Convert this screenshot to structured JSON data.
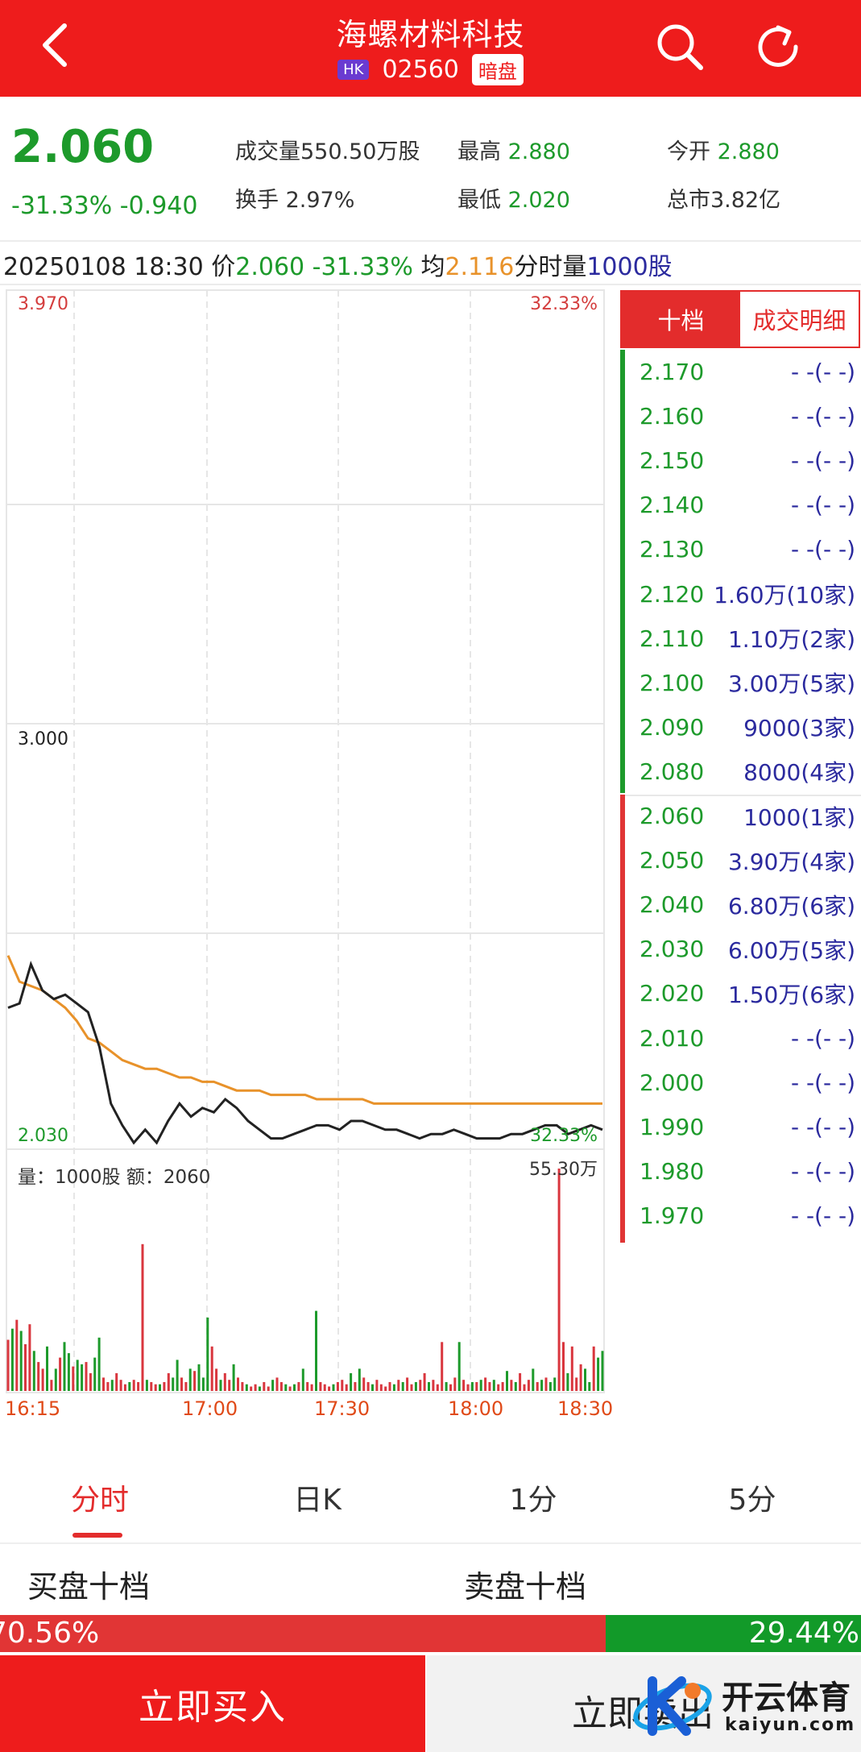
{
  "header": {
    "title": "海螺材料科技",
    "market_badge": "HK",
    "code": "02560",
    "session_badge": "暗盘",
    "icons": [
      "back-icon",
      "search-icon",
      "refresh-icon"
    ]
  },
  "quote": {
    "price": "2.060",
    "change": "-31.33% -0.940",
    "volume_label": "成交量",
    "volume": "550.50万股",
    "turnover_label": "换手",
    "turnover": "2.97%",
    "high_label": "最高",
    "high": "2.880",
    "low_label": "最低",
    "low": "2.020",
    "open_label": "今开",
    "open": "2.880",
    "mcap_label": "总市",
    "mcap": "3.82亿"
  },
  "info_row": {
    "datetime": "20250108 18:30",
    "price_label": "价",
    "price": "2.060",
    "change": "-31.33%",
    "avg_label": "均",
    "avg": "2.116",
    "vol_label": "分时量",
    "vol": "1000股"
  },
  "chart": {
    "top_price": "3.970",
    "top_pct": "32.33%",
    "mid_price": "3.000",
    "bottom_price": "2.030",
    "bottom_pct": "32.33%",
    "volume_caption": "量：1000股 额：2060",
    "volume_max": "55.30万",
    "time_labels": [
      "16:15",
      "17:00",
      "17:30",
      "18:00",
      "18:30"
    ]
  },
  "chart_data": {
    "type": "line",
    "y_range": [
      2.03,
      3.97
    ],
    "x_range": [
      "16:15",
      "18:30"
    ],
    "series": [
      {
        "values": [
          2.34,
          2.35,
          2.44,
          2.38,
          2.36,
          2.37,
          2.35,
          2.33,
          2.25,
          2.12,
          2.07,
          2.03,
          2.06,
          2.03,
          2.08,
          2.12,
          2.09,
          2.11,
          2.1,
          2.13,
          2.11,
          2.08,
          2.06,
          2.04,
          2.04,
          2.05,
          2.06,
          2.07,
          2.07,
          2.06,
          2.08,
          2.08,
          2.07,
          2.06,
          2.06,
          2.05,
          2.04,
          2.05,
          2.05,
          2.06,
          2.05,
          2.04,
          2.04,
          2.04,
          2.05,
          2.05,
          2.06,
          2.07,
          2.07,
          2.05,
          2.06,
          2.07,
          2.06
        ]
      },
      {
        "values": [
          2.46,
          2.4,
          2.39,
          2.38,
          2.36,
          2.34,
          2.31,
          2.27,
          2.26,
          2.24,
          2.22,
          2.21,
          2.2,
          2.2,
          2.19,
          2.18,
          2.18,
          2.17,
          2.17,
          2.16,
          2.15,
          2.15,
          2.15,
          2.14,
          2.14,
          2.14,
          2.14,
          2.13,
          2.13,
          2.13,
          2.13,
          2.13,
          2.12,
          2.12,
          2.12,
          2.12,
          2.12,
          2.12,
          2.12,
          2.12,
          2.12,
          2.12,
          2.12,
          2.12,
          2.12,
          2.12,
          2.12,
          2.12,
          2.12,
          2.12,
          2.12,
          2.12,
          2.12
        ]
      }
    ],
    "volume_bars": [
      0.23,
      0.28,
      0.32,
      0.27,
      0.21,
      0.3,
      0.18,
      0.13,
      0.1,
      0.2,
      0.05,
      0.1,
      0.15,
      0.22,
      0.17,
      0.11,
      0.14,
      0.12,
      0.13,
      0.08,
      0.15,
      0.24,
      0.06,
      0.04,
      0.05,
      0.08,
      0.05,
      0.03,
      0.04,
      0.05,
      0.04,
      0.66,
      0.05,
      0.04,
      0.03,
      0.03,
      0.04,
      0.08,
      0.06,
      0.14,
      0.06,
      0.04,
      0.1,
      0.09,
      0.12,
      0.06,
      0.33,
      0.2,
      0.1,
      0.05,
      0.08,
      0.05,
      0.12,
      0.06,
      0.04,
      0.03,
      0.02,
      0.03,
      0.02,
      0.04,
      0.02,
      0.05,
      0.06,
      0.04,
      0.03,
      0.02,
      0.03,
      0.04,
      0.1,
      0.04,
      0.03,
      0.36,
      0.04,
      0.03,
      0.02,
      0.03,
      0.04,
      0.05,
      0.03,
      0.08,
      0.04,
      0.1,
      0.06,
      0.04,
      0.03,
      0.05,
      0.03,
      0.02,
      0.04,
      0.03,
      0.05,
      0.04,
      0.06,
      0.03,
      0.04,
      0.05,
      0.08,
      0.04,
      0.05,
      0.03,
      0.22,
      0.04,
      0.03,
      0.06,
      0.22,
      0.05,
      0.03,
      0.04,
      0.04,
      0.05,
      0.06,
      0.04,
      0.05,
      0.03,
      0.04,
      0.09,
      0.05,
      0.04,
      0.08,
      0.03,
      0.05,
      0.1,
      0.04,
      0.05,
      0.06,
      0.04,
      0.06,
      1.0,
      0.22,
      0.08,
      0.2,
      0.06,
      0.12,
      0.1,
      0.04,
      0.2,
      0.15,
      0.18
    ],
    "volume_colors": [
      "r",
      "g",
      "r",
      "g",
      "r",
      "r",
      "g",
      "r",
      "r",
      "g",
      "r",
      "g",
      "r",
      "g",
      "g",
      "r",
      "g",
      "g",
      "r",
      "r",
      "g",
      "g",
      "r",
      "r",
      "g",
      "r",
      "r",
      "r",
      "g",
      "r",
      "r",
      "r",
      "g",
      "r",
      "r",
      "g",
      "r",
      "r",
      "g",
      "g",
      "r",
      "r",
      "g",
      "r",
      "g",
      "g",
      "g",
      "r",
      "r",
      "g",
      "r",
      "r",
      "g",
      "r",
      "r",
      "g",
      "r",
      "r",
      "g",
      "r",
      "r",
      "g",
      "r",
      "r",
      "g",
      "r",
      "g",
      "r",
      "g",
      "r",
      "r",
      "g",
      "r",
      "r",
      "r",
      "g",
      "r",
      "r",
      "r",
      "g",
      "r",
      "g",
      "r",
      "r",
      "g",
      "r",
      "r",
      "r",
      "r",
      "g",
      "r",
      "g",
      "r",
      "r",
      "g",
      "r",
      "r",
      "g",
      "r",
      "r",
      "r",
      "g",
      "r",
      "r",
      "g",
      "r",
      "r",
      "g",
      "r",
      "g",
      "r",
      "r",
      "g",
      "r",
      "r",
      "g",
      "r",
      "g",
      "r",
      "r",
      "r",
      "g",
      "r",
      "g",
      "r",
      "g",
      "g",
      "r",
      "r",
      "g",
      "r",
      "r",
      "r",
      "g",
      "g",
      "r",
      "g",
      "g"
    ]
  },
  "orderbook": {
    "tab_ten": "十档",
    "tab_detail": "成交明细",
    "asks": [
      {
        "price": "2.170",
        "vol": "- -(- -)"
      },
      {
        "price": "2.160",
        "vol": "- -(- -)"
      },
      {
        "price": "2.150",
        "vol": "- -(- -)"
      },
      {
        "price": "2.140",
        "vol": "- -(- -)"
      },
      {
        "price": "2.130",
        "vol": "- -(- -)"
      },
      {
        "price": "2.120",
        "vol": "1.60万(10家)"
      },
      {
        "price": "2.110",
        "vol": "1.10万(2家)"
      },
      {
        "price": "2.100",
        "vol": "3.00万(5家)"
      },
      {
        "price": "2.090",
        "vol": "9000(3家)"
      },
      {
        "price": "2.080",
        "vol": "8000(4家)"
      }
    ],
    "bids": [
      {
        "price": "2.060",
        "vol": "1000(1家)"
      },
      {
        "price": "2.050",
        "vol": "3.90万(4家)"
      },
      {
        "price": "2.040",
        "vol": "6.80万(6家)"
      },
      {
        "price": "2.030",
        "vol": "6.00万(5家)"
      },
      {
        "price": "2.020",
        "vol": "1.50万(6家)"
      },
      {
        "price": "2.010",
        "vol": "- -(- -)"
      },
      {
        "price": "2.000",
        "vol": "- -(- -)"
      },
      {
        "price": "1.990",
        "vol": "- -(- -)"
      },
      {
        "price": "1.980",
        "vol": "- -(- -)"
      },
      {
        "price": "1.970",
        "vol": "- -(- -)"
      }
    ]
  },
  "tabs": [
    "分时",
    "日K",
    "1分",
    "5分"
  ],
  "depth": {
    "buy_title": "买盘十档",
    "sell_title": "卖盘十档",
    "buy_pct": "70.56%",
    "sell_pct": "29.44%",
    "buy_ratio": 0.7056
  },
  "actions": {
    "buy": "立即买入",
    "sell": "立即卖出"
  },
  "watermark": {
    "cn": "开云体育",
    "en": "kaiyun.com"
  },
  "colors": {
    "brand_red": "#ee1c1c",
    "up_red": "#e03535",
    "down_green": "#1d9a2b",
    "avg_orange": "#e8922a",
    "vol_blue": "#2b2a9e"
  }
}
